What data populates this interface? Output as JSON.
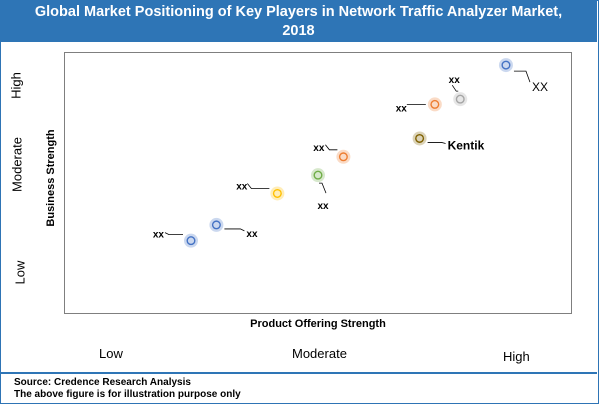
{
  "title_line1": "Global Market Positioning of Key Players in Network Traffic Analyzer Market,",
  "title_line2": "2018",
  "source": "Source: Credence Research Analysis",
  "disclaimer": "The above figure is for illustration purpose only",
  "colors": {
    "title_bg": "#2e75b6",
    "blue": "#4472c4",
    "orange": "#ed7d31",
    "yellow": "#ffc000",
    "green": "#70ad47",
    "gray": "#a5a5a5",
    "olive": "#7f6000"
  },
  "chart_data": {
    "type": "scatter",
    "xlabel": "Product Offering Strength",
    "ylabel": "Business Strength",
    "x_categories": [
      "Low",
      "Moderate",
      "High"
    ],
    "y_categories": [
      "Low",
      "Moderate",
      "High"
    ],
    "xlim": [
      0,
      10
    ],
    "ylim": [
      0,
      10
    ],
    "grid": false,
    "points": [
      {
        "label": "xx",
        "x": 2.5,
        "y": 2.8,
        "color": "#4472c4"
      },
      {
        "label": "xx",
        "x": 3.0,
        "y": 3.4,
        "color": "#4472c4"
      },
      {
        "label": "xx",
        "x": 4.2,
        "y": 4.6,
        "color": "#ffc000"
      },
      {
        "label": "xx",
        "x": 5.0,
        "y": 5.3,
        "color": "#70ad47"
      },
      {
        "label": "xx",
        "x": 5.5,
        "y": 6.0,
        "color": "#ed7d31"
      },
      {
        "label": "Kentik",
        "x": 7.0,
        "y": 6.7,
        "color": "#7f6000"
      },
      {
        "label": "xx",
        "x": 7.3,
        "y": 8.0,
        "color": "#ed7d31"
      },
      {
        "label": "xx",
        "x": 7.8,
        "y": 8.2,
        "color": "#a5a5a5"
      },
      {
        "label": "XX",
        "x": 8.7,
        "y": 9.5,
        "color": "#4472c4"
      }
    ]
  }
}
